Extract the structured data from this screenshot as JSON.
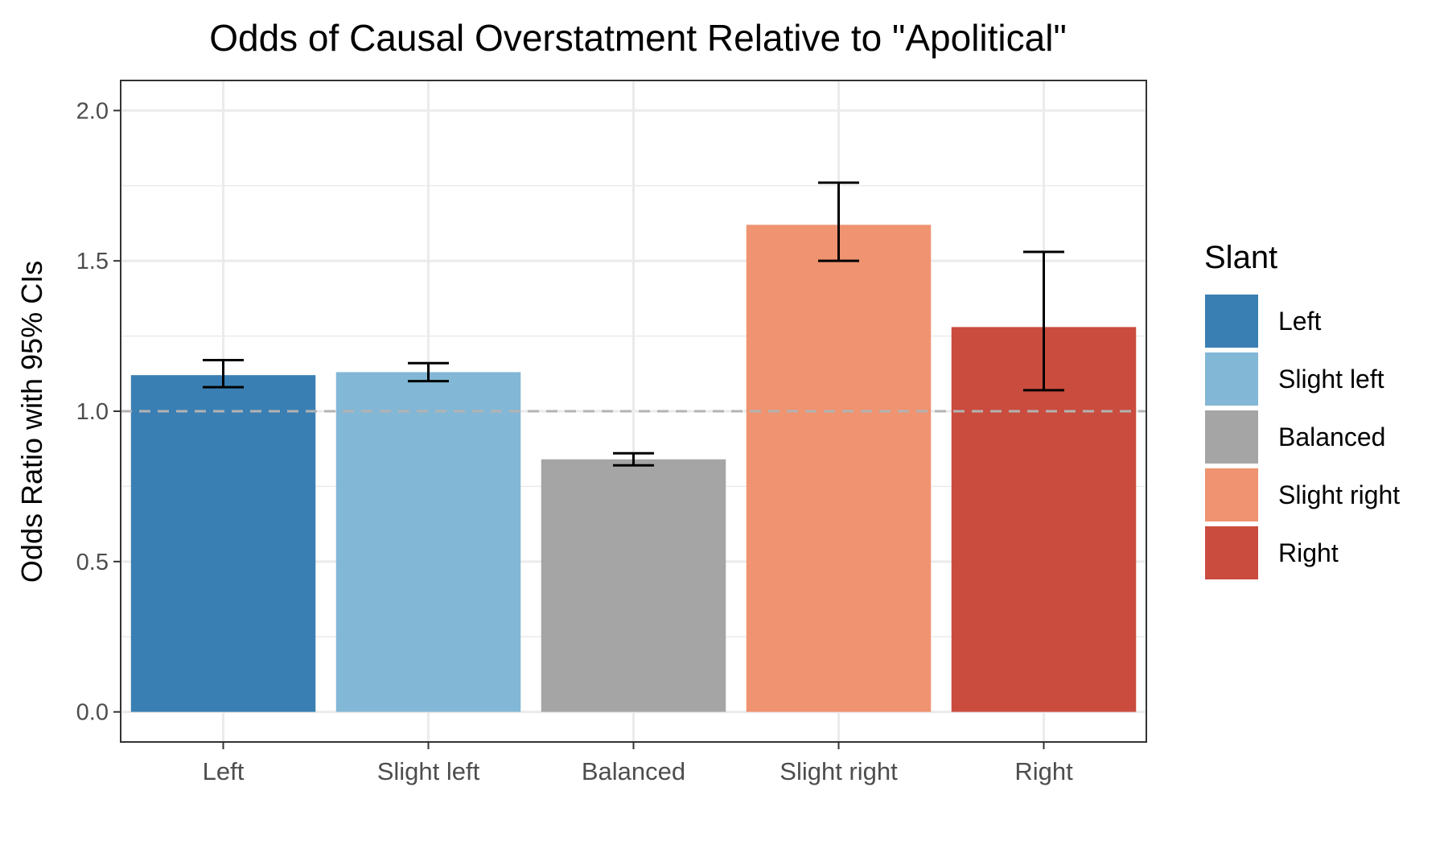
{
  "chart_data": {
    "type": "bar",
    "title": "Odds of Causal Overstatment Relative to \"Apolitical\"",
    "xlabel": "",
    "ylabel": "Odds Ratio with 95% CIs",
    "categories": [
      "Left",
      "Slight left",
      "Balanced",
      "Slight right",
      "Right"
    ],
    "values": [
      1.12,
      1.13,
      0.84,
      1.62,
      1.28
    ],
    "ci_lower": [
      1.08,
      1.1,
      0.82,
      1.5,
      1.07
    ],
    "ci_upper": [
      1.17,
      1.16,
      0.86,
      1.76,
      1.53
    ],
    "colors": [
      "#3A7FB3",
      "#82B7D6",
      "#A5A5A5",
      "#EF9370",
      "#CA4C3E"
    ],
    "ylim": [
      -0.1,
      2.1
    ],
    "yticks": [
      0.0,
      0.5,
      1.0,
      1.5,
      2.0
    ],
    "ytick_labels": [
      "0.0",
      "0.5",
      "1.0",
      "1.5",
      "2.0"
    ],
    "reference_line": {
      "y": 1.0,
      "style": "dashed",
      "color": "#B3B3B3"
    },
    "grid": true,
    "legend": {
      "title": "Slant",
      "position": "right",
      "entries": [
        "Left",
        "Slight left",
        "Balanced",
        "Slight right",
        "Right"
      ]
    }
  }
}
